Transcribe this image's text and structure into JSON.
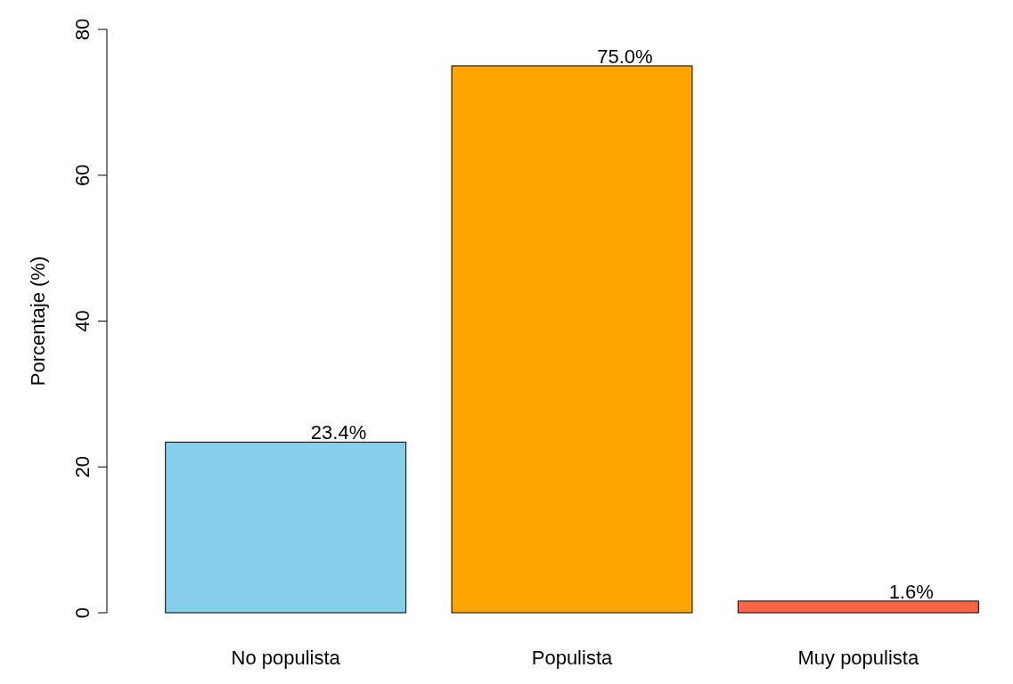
{
  "chart_data": {
    "type": "bar",
    "ylabel": "Porcentaje (%)",
    "categories": [
      "No populista",
      "Populista",
      "Muy populista"
    ],
    "values": [
      23.4,
      75.0,
      1.6
    ],
    "colors": [
      "#87ceeb",
      "#ffa500",
      "#ff6347"
    ],
    "value_labels": [
      "23.4%",
      "75.0%",
      "1.6%"
    ],
    "ylim": [
      0,
      80
    ],
    "yticks": [
      0,
      20,
      40,
      60,
      80
    ]
  }
}
